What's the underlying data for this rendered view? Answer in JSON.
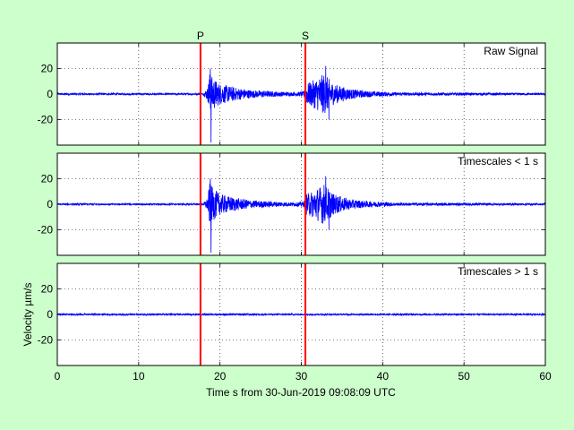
{
  "figure": {
    "background": "#ccffcc",
    "xlabel": "Time s from 30-Jun-2019 09:08:09 UTC",
    "ylabel": "Velocity µm/s"
  },
  "chart_data": [
    {
      "type": "line",
      "title": "Raw Signal",
      "xlim": [
        0,
        60
      ],
      "ylim": [
        -40,
        40
      ],
      "yticks": [
        -20,
        0,
        20
      ],
      "xticks": [
        0,
        10,
        20,
        30,
        40,
        50,
        60
      ],
      "grid": "dotted",
      "series": [
        {
          "color": "#0000ff",
          "envelope": [
            {
              "t": 0,
              "a": 0.7
            },
            {
              "t": 17.9,
              "a": 0.7
            },
            {
              "t": 18.5,
              "a": 5
            },
            {
              "t": 18.7,
              "a": 17
            },
            {
              "t": 19.1,
              "a": 13
            },
            {
              "t": 20,
              "a": 8
            },
            {
              "t": 22,
              "a": 5
            },
            {
              "t": 24,
              "a": 3
            },
            {
              "t": 27,
              "a": 2
            },
            {
              "t": 29,
              "a": 1.5
            },
            {
              "t": 30.3,
              "a": 2
            },
            {
              "t": 30.6,
              "a": 8
            },
            {
              "t": 31.5,
              "a": 11
            },
            {
              "t": 32.8,
              "a": 16
            },
            {
              "t": 34,
              "a": 8
            },
            {
              "t": 36,
              "a": 4
            },
            {
              "t": 38,
              "a": 2.5
            },
            {
              "t": 42,
              "a": 1.2
            },
            {
              "t": 60,
              "a": 0.8
            }
          ],
          "spikes": [
            {
              "t": 18.8,
              "v": 20
            },
            {
              "t": 18.9,
              "v": -38
            },
            {
              "t": 33.0,
              "v": 22
            },
            {
              "t": 33.4,
              "v": -20
            }
          ]
        }
      ],
      "markers": [
        {
          "label": "P",
          "x": 17.6,
          "color": "#ff0000"
        },
        {
          "label": "S",
          "x": 30.5,
          "color": "#ff0000"
        }
      ]
    },
    {
      "type": "line",
      "title": "Timescales < 1 s",
      "xlim": [
        0,
        60
      ],
      "ylim": [
        -40,
        40
      ],
      "yticks": [
        -20,
        0,
        20
      ],
      "xticks": [
        0,
        10,
        20,
        30,
        40,
        50,
        60
      ],
      "grid": "dotted",
      "series": [
        {
          "color": "#0000ff",
          "envelope": [
            {
              "t": 0,
              "a": 0.6
            },
            {
              "t": 17.9,
              "a": 0.6
            },
            {
              "t": 18.5,
              "a": 5
            },
            {
              "t": 18.7,
              "a": 17
            },
            {
              "t": 19.1,
              "a": 13
            },
            {
              "t": 20,
              "a": 8
            },
            {
              "t": 22,
              "a": 5
            },
            {
              "t": 24,
              "a": 3
            },
            {
              "t": 27,
              "a": 2
            },
            {
              "t": 29,
              "a": 1.5
            },
            {
              "t": 30.3,
              "a": 2
            },
            {
              "t": 30.6,
              "a": 8
            },
            {
              "t": 31.5,
              "a": 11
            },
            {
              "t": 32.8,
              "a": 16
            },
            {
              "t": 34,
              "a": 8
            },
            {
              "t": 36,
              "a": 4
            },
            {
              "t": 38,
              "a": 2.5
            },
            {
              "t": 42,
              "a": 1.2
            },
            {
              "t": 60,
              "a": 0.7
            }
          ],
          "spikes": [
            {
              "t": 18.8,
              "v": 20
            },
            {
              "t": 18.9,
              "v": -38
            },
            {
              "t": 33.0,
              "v": 22
            },
            {
              "t": 33.4,
              "v": -20
            }
          ]
        }
      ],
      "markers": [
        {
          "label": "",
          "x": 17.6,
          "color": "#ff0000"
        },
        {
          "label": "",
          "x": 30.5,
          "color": "#ff0000"
        }
      ]
    },
    {
      "type": "line",
      "title": "Timescales > 1 s",
      "xlim": [
        0,
        60
      ],
      "ylim": [
        -40,
        40
      ],
      "yticks": [
        -20,
        0,
        20
      ],
      "xticks": [
        0,
        10,
        20,
        30,
        40,
        50,
        60
      ],
      "xticklabels": [
        "0",
        "10",
        "20",
        "30",
        "40",
        "50",
        "60"
      ],
      "grid": "dotted",
      "series": [
        {
          "color": "#0000ff",
          "envelope": [
            {
              "t": 0,
              "a": 0.6
            },
            {
              "t": 60,
              "a": 0.6
            }
          ],
          "spikes": []
        }
      ],
      "markers": [
        {
          "label": "",
          "x": 17.6,
          "color": "#ff0000"
        },
        {
          "label": "",
          "x": 30.5,
          "color": "#ff0000"
        }
      ]
    }
  ]
}
